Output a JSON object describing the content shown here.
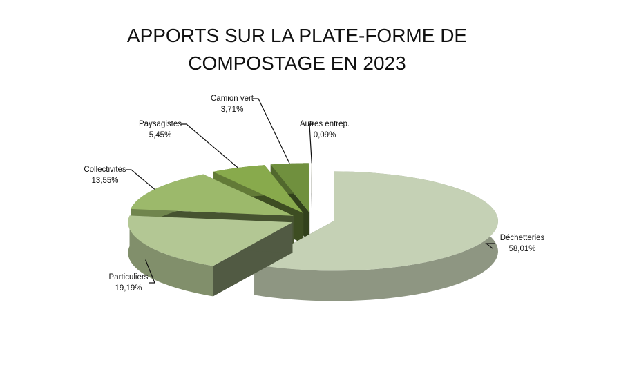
{
  "chart_data": {
    "type": "pie3d",
    "title": "APPORTS SUR LA PLATE-FORME DE COMPOSTAGE EN 2023",
    "categories": [
      "Déchetteries",
      "Particuliers",
      "Collectivités",
      "Paysagistes",
      "Camion vert",
      "Autres entrep."
    ],
    "values": [
      58.01,
      19.19,
      13.55,
      5.45,
      3.71,
      0.09
    ],
    "value_labels": [
      "58,01%",
      "19,19%",
      "13,55%",
      "5,45%",
      "3,71%",
      "0,09%"
    ],
    "colors": [
      "#c5d1b5",
      "#b3c794",
      "#9cb96b",
      "#88aa4c",
      "#70903e",
      "#eef0e0"
    ]
  }
}
